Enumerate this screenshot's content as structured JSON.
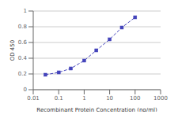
{
  "chart_data": {
    "type": "line",
    "x": [
      0.03,
      0.1,
      0.3,
      1.0,
      3.0,
      10.0,
      30.0,
      100.0
    ],
    "values": [
      0.19,
      0.22,
      0.27,
      0.37,
      0.5,
      0.64,
      0.79,
      0.92
    ],
    "color": "#4444bb",
    "marker": "square",
    "line_style": "dashed",
    "xlabel": "Recombinant Protein Concentration (ng/ml)",
    "ylabel": "OD 450",
    "log": "x",
    "xlim": [
      0.01,
      1000
    ],
    "ylim": [
      0,
      1
    ],
    "xticks": [
      0.01,
      0.1,
      1,
      10,
      100,
      1000
    ],
    "yticks": [
      0,
      0.2,
      0.4,
      0.6,
      0.8,
      1
    ],
    "grid": "y"
  }
}
